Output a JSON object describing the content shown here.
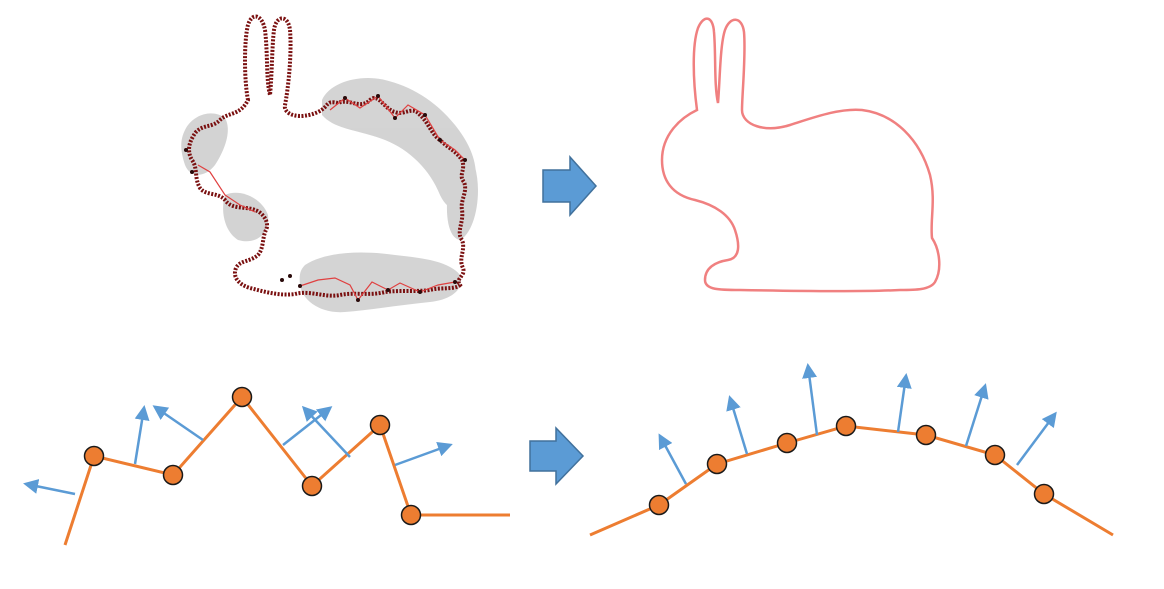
{
  "figure": {
    "panels": [
      {
        "id": "noisy-bunny",
        "description_visible": false
      },
      {
        "id": "smooth-bunny",
        "description_visible": false
      },
      {
        "id": "noisy-polyline",
        "description_visible": false
      },
      {
        "id": "smooth-polyline",
        "description_visible": false
      }
    ],
    "colors": {
      "background": "#ffffff",
      "noisy_outline": "#7a1010",
      "noisy_points": "#2a0a0a",
      "noisy_line": "#e04040",
      "halo": "#c8c8c8",
      "smooth_outline": "#f08080",
      "arrow_fill": "#5b9bd5",
      "arrow_stroke": "#41719c",
      "polyline": "#ed7d31",
      "vertex_fill": "#ed7d31",
      "vertex_stroke": "#1a1a1a",
      "normal": "#5b9bd5"
    },
    "icons": [
      "right-arrow-icon",
      "right-arrow-icon"
    ]
  }
}
